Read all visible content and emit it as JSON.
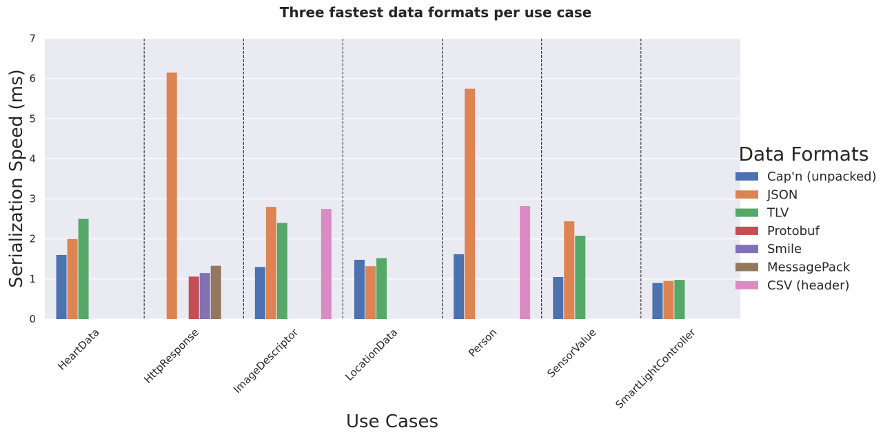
{
  "chart_data": {
    "type": "bar",
    "title": "Three fastest data formats per use case",
    "xlabel": "Use Cases",
    "ylabel": "Serialization Speed (ms)",
    "ylim": [
      0,
      7
    ],
    "yticks": [
      0,
      1,
      2,
      3,
      4,
      5,
      6,
      7
    ],
    "grid": true,
    "legend_title": "Data Formats",
    "legend_position": "right",
    "categories": [
      "HeartData",
      "HttpResponse",
      "ImageDescriptor",
      "LocationData",
      "Person",
      "SensorValue",
      "SmartLightController"
    ],
    "series": [
      {
        "name": "Cap'n (unpacked)",
        "color": "#4c72b0",
        "values": [
          1.6,
          null,
          1.3,
          1.48,
          1.62,
          1.05,
          0.9
        ]
      },
      {
        "name": "JSON",
        "color": "#dd8452",
        "values": [
          2.0,
          6.15,
          2.8,
          1.32,
          5.75,
          2.44,
          0.95
        ]
      },
      {
        "name": "TLV",
        "color": "#55a868",
        "values": [
          2.5,
          null,
          2.4,
          1.52,
          null,
          2.08,
          0.98
        ]
      },
      {
        "name": "Protobuf",
        "color": "#c44e52",
        "values": [
          null,
          1.06,
          null,
          null,
          null,
          null,
          null
        ]
      },
      {
        "name": "Smile",
        "color": "#8172b3",
        "values": [
          null,
          1.15,
          null,
          null,
          null,
          null,
          null
        ]
      },
      {
        "name": "MessagePack",
        "color": "#937860",
        "values": [
          null,
          1.33,
          null,
          null,
          null,
          null,
          null
        ]
      },
      {
        "name": "CSV (header)",
        "color": "#da8bc3",
        "values": [
          null,
          null,
          2.75,
          null,
          2.82,
          null,
          null
        ]
      }
    ]
  }
}
